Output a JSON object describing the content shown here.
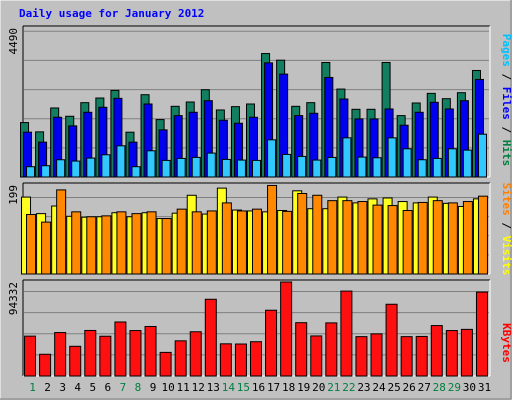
{
  "chart_data": [
    {
      "type": "bar",
      "title": "Daily usage for January 2012",
      "categories": [
        "1",
        "2",
        "3",
        "4",
        "5",
        "6",
        "7",
        "8",
        "9",
        "10",
        "11",
        "12",
        "13",
        "14",
        "15",
        "16",
        "17",
        "18",
        "19",
        "20",
        "21",
        "22",
        "23",
        "24",
        "25",
        "26",
        "27",
        "28",
        "29",
        "30",
        "31"
      ],
      "weekend_days": [
        "1",
        "7",
        "8",
        "14",
        "15",
        "21",
        "22",
        "28",
        "29"
      ],
      "ymax_label": "4490",
      "ylim": [
        0,
        4490
      ],
      "grid": true,
      "legend": [
        {
          "label": "Pages",
          "color": "#00c0ff"
        },
        {
          "label": " / ",
          "color": "#000000"
        },
        {
          "label": "Files",
          "color": "#0000ff"
        },
        {
          "label": " / ",
          "color": "#000000"
        },
        {
          "label": "Hits",
          "color": "#008040"
        }
      ],
      "series": [
        {
          "name": "Hits",
          "color": "#128060",
          "values": [
            1640,
            1360,
            2080,
            1830,
            2240,
            2380,
            2610,
            1350,
            2480,
            1730,
            2130,
            2260,
            2630,
            2020,
            2120,
            2200,
            3720,
            3520,
            2130,
            2240,
            3450,
            2650,
            2040,
            2040,
            3450,
            1850,
            2230,
            2520,
            2360,
            2540,
            3210
          ]
        },
        {
          "name": "Files",
          "color": "#0000f0",
          "values": [
            1350,
            1050,
            1800,
            1540,
            1950,
            2100,
            2370,
            1050,
            2200,
            1420,
            1850,
            1950,
            2300,
            1710,
            1620,
            1800,
            3440,
            3100,
            1850,
            1920,
            3000,
            2350,
            1750,
            1750,
            2050,
            1560,
            1950,
            2250,
            2050,
            2300,
            2940
          ]
        },
        {
          "name": "Pages",
          "color": "#30c8ff",
          "values": [
            310,
            340,
            520,
            480,
            570,
            670,
            940,
            310,
            790,
            500,
            560,
            590,
            720,
            530,
            510,
            500,
            1120,
            680,
            620,
            510,
            590,
            1180,
            600,
            580,
            1180,
            850,
            520,
            560,
            850,
            810,
            1290
          ]
        }
      ]
    },
    {
      "type": "bar",
      "ymax_label": "199",
      "ylim": [
        0,
        199
      ],
      "grid": true,
      "legend": [
        {
          "label": "Sites",
          "color": "#ff8000"
        },
        {
          "label": " / ",
          "color": "#000000"
        },
        {
          "label": "Visits",
          "color": "#ffff00"
        }
      ],
      "series": [
        {
          "name": "Visits",
          "color": "#ffff20",
          "values": [
            172,
            135,
            152,
            129,
            127,
            128,
            137,
            128,
            137,
            124,
            136,
            176,
            134,
            192,
            143,
            141,
            139,
            142,
            186,
            146,
            146,
            172,
            159,
            168,
            170,
            162,
            159,
            172,
            158,
            151,
            168
          ]
        },
        {
          "name": "Sites",
          "color": "#ff8800",
          "values": [
            133,
            116,
            188,
            139,
            128,
            130,
            139,
            135,
            139,
            124,
            145,
            139,
            141,
            159,
            141,
            145,
            198,
            140,
            180,
            176,
            164,
            164,
            162,
            154,
            153,
            142,
            160,
            164,
            159,
            162,
            174
          ]
        }
      ]
    },
    {
      "type": "bar",
      "ymax_label": "94332",
      "ylim": [
        0,
        94332
      ],
      "grid": true,
      "legend": [
        {
          "label": "KBytes",
          "color": "#ff0000"
        }
      ],
      "series": [
        {
          "name": "KBytes",
          "color": "#ff1010",
          "values": [
            40000,
            21800,
            43600,
            29800,
            45700,
            39900,
            54200,
            45600,
            49700,
            23700,
            35300,
            44400,
            77000,
            32300,
            32100,
            34400,
            66000,
            94332,
            53500,
            40200,
            53300,
            85200,
            39500,
            42300,
            72000,
            39500,
            39700,
            50600,
            45600,
            46800,
            84200
          ]
        }
      ]
    }
  ]
}
